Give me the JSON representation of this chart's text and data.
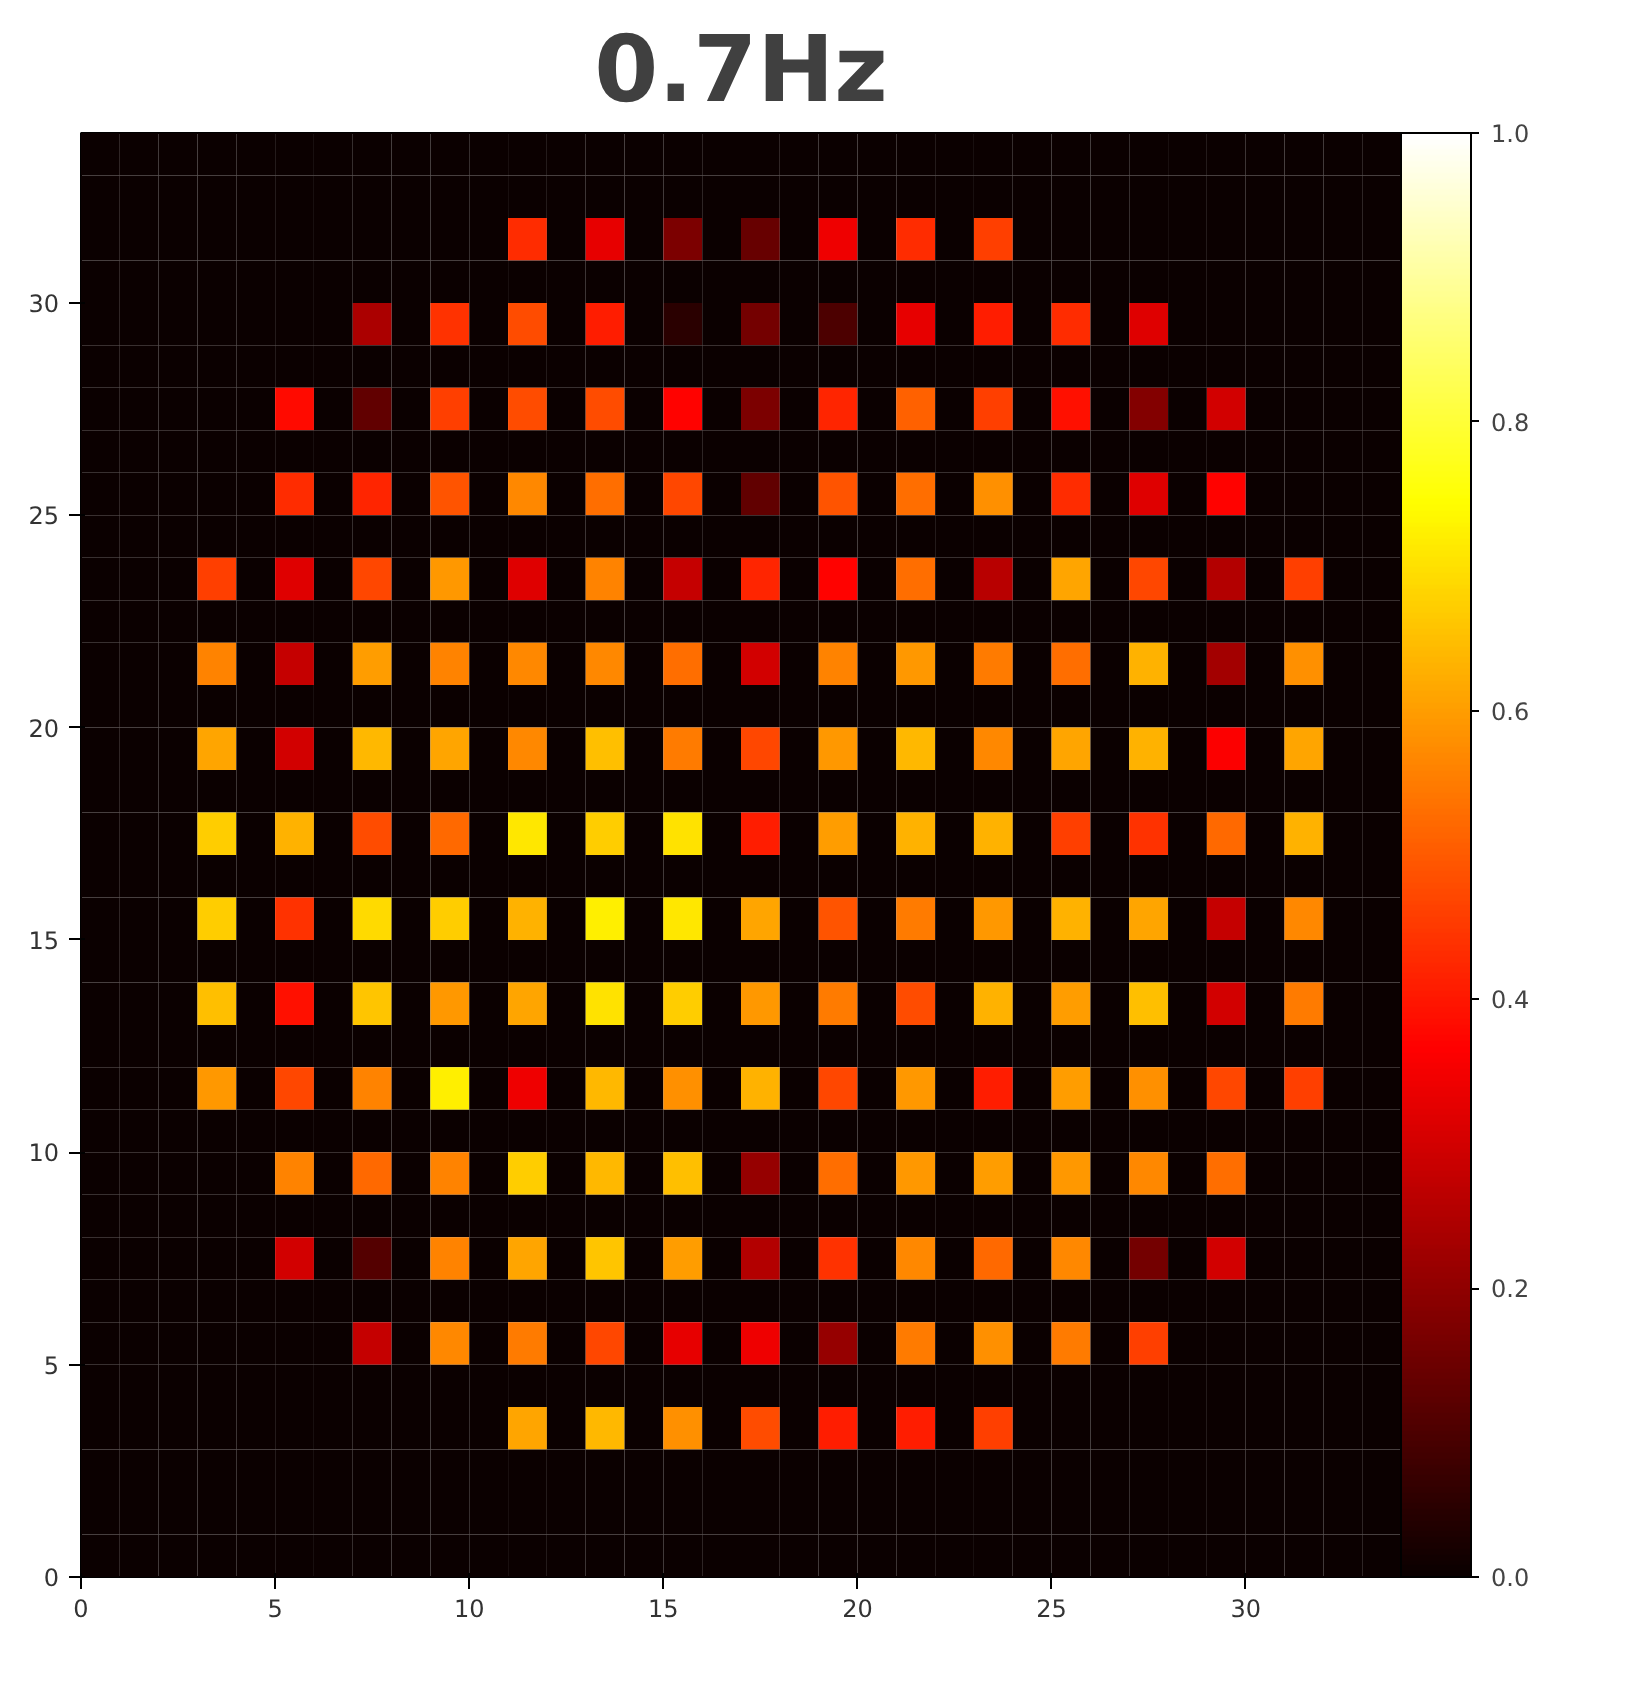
{
  "chart_data": {
    "type": "heatmap",
    "title": "0.7Hz",
    "xlim": [
      0,
      34
    ],
    "ylim": [
      0,
      34
    ],
    "xticks": [
      0,
      5,
      10,
      15,
      20,
      25,
      30
    ],
    "yticks": [
      0,
      5,
      10,
      15,
      20,
      25,
      30
    ],
    "clim": [
      0,
      1
    ],
    "cticks": [
      {
        "value": 0,
        "label": "0.0"
      },
      0.2,
      0.4,
      0.6,
      0.8,
      {
        "value": 1,
        "label": "1.0"
      }
    ],
    "grid": false,
    "cells": [
      [
        0,
        0,
        0,
        0,
        0,
        0,
        0,
        0,
        0,
        0,
        0,
        0,
        0,
        0,
        0,
        0,
        0,
        0,
        0,
        0,
        0,
        0,
        0,
        0,
        0,
        0,
        0,
        0,
        0,
        0,
        0,
        0,
        0,
        0
      ],
      [
        0,
        0,
        0,
        0,
        0,
        0,
        0,
        0,
        0,
        0,
        0,
        0,
        0,
        0,
        0,
        0,
        0,
        0,
        0,
        0,
        0,
        0,
        0,
        0,
        0,
        0,
        0,
        0,
        0,
        0,
        0,
        0,
        0,
        0
      ],
      [
        0,
        0,
        0,
        0,
        0,
        0,
        0,
        0,
        0,
        0,
        0,
        0.43,
        0,
        0.33,
        0,
        0.17,
        0,
        0.14,
        0,
        0.34,
        0,
        0.43,
        0,
        0.46,
        0,
        0,
        0,
        0,
        0,
        0,
        0,
        0,
        0,
        0
      ],
      [
        0,
        0,
        0,
        0,
        0,
        0,
        0,
        0,
        0,
        0,
        0,
        0,
        0,
        0,
        0,
        0,
        0,
        0,
        0,
        0,
        0,
        0,
        0,
        0,
        0,
        0,
        0,
        0,
        0,
        0,
        0,
        0,
        0,
        0
      ],
      [
        0,
        0,
        0,
        0,
        0,
        0,
        0,
        0.24,
        0,
        0.44,
        0,
        0.48,
        0,
        0.41,
        0,
        0.05,
        0,
        0.16,
        0,
        0.1,
        0,
        0.33,
        0,
        0.41,
        0,
        0.43,
        0,
        0.32,
        0,
        0,
        0,
        0,
        0,
        0
      ],
      [
        0,
        0,
        0,
        0,
        0,
        0,
        0,
        0,
        0,
        0,
        0,
        0,
        0,
        0,
        0,
        0,
        0,
        0,
        0,
        0,
        0,
        0,
        0,
        0,
        0,
        0,
        0,
        0,
        0,
        0,
        0,
        0,
        0,
        0
      ],
      [
        0,
        0,
        0,
        0,
        0,
        0.38,
        0,
        0.13,
        0,
        0.46,
        0,
        0.48,
        0,
        0.48,
        0,
        0.37,
        0,
        0.17,
        0,
        0.42,
        0,
        0.51,
        0,
        0.46,
        0,
        0.39,
        0,
        0.18,
        0,
        0.3,
        0,
        0,
        0,
        0
      ],
      [
        0,
        0,
        0,
        0,
        0,
        0,
        0,
        0,
        0,
        0,
        0,
        0,
        0,
        0,
        0,
        0,
        0,
        0,
        0,
        0,
        0,
        0,
        0,
        0,
        0,
        0,
        0,
        0,
        0,
        0,
        0,
        0,
        0,
        0
      ],
      [
        0,
        0,
        0,
        0,
        0,
        0.43,
        0,
        0.42,
        0,
        0.49,
        0,
        0.57,
        0,
        0.53,
        0,
        0.47,
        0,
        0.13,
        0,
        0.49,
        0,
        0.53,
        0,
        0.58,
        0,
        0.43,
        0,
        0.32,
        0,
        0.37,
        0,
        0,
        0,
        0
      ],
      [
        0,
        0,
        0,
        0,
        0,
        0,
        0,
        0,
        0,
        0,
        0,
        0,
        0,
        0,
        0,
        0,
        0,
        0,
        0,
        0,
        0,
        0,
        0,
        0,
        0,
        0,
        0,
        0,
        0,
        0,
        0,
        0,
        0,
        0
      ],
      [
        0,
        0,
        0,
        0.46,
        0,
        0.32,
        0,
        0.47,
        0,
        0.59,
        0,
        0.32,
        0,
        0.56,
        0,
        0.28,
        0,
        0.42,
        0,
        0.37,
        0,
        0.53,
        0,
        0.26,
        0,
        0.61,
        0,
        0.47,
        0,
        0.25,
        0,
        0.46,
        0,
        0
      ],
      [
        0,
        0,
        0,
        0,
        0,
        0,
        0,
        0,
        0,
        0,
        0,
        0,
        0,
        0,
        0,
        0,
        0,
        0,
        0,
        0,
        0,
        0,
        0,
        0,
        0,
        0,
        0,
        0,
        0,
        0,
        0,
        0,
        0,
        0
      ],
      [
        0,
        0,
        0,
        0.56,
        0,
        0.28,
        0,
        0.6,
        0,
        0.56,
        0,
        0.57,
        0,
        0.57,
        0,
        0.53,
        0,
        0.3,
        0,
        0.56,
        0,
        0.59,
        0,
        0.55,
        0,
        0.53,
        0,
        0.63,
        0,
        0.23,
        0,
        0.58,
        0,
        0
      ],
      [
        0,
        0,
        0,
        0,
        0,
        0,
        0,
        0,
        0,
        0,
        0,
        0,
        0,
        0,
        0,
        0,
        0,
        0,
        0,
        0,
        0,
        0,
        0,
        0,
        0,
        0,
        0,
        0,
        0,
        0,
        0,
        0,
        0,
        0
      ],
      [
        0,
        0,
        0,
        0.61,
        0,
        0.3,
        0,
        0.64,
        0,
        0.61,
        0,
        0.57,
        0,
        0.65,
        0,
        0.55,
        0,
        0.47,
        0,
        0.59,
        0,
        0.64,
        0,
        0.57,
        0,
        0.61,
        0,
        0.63,
        0,
        0.36,
        0,
        0.61,
        0,
        0
      ],
      [
        0,
        0,
        0,
        0,
        0,
        0,
        0,
        0,
        0,
        0,
        0,
        0,
        0,
        0,
        0,
        0,
        0,
        0,
        0,
        0,
        0,
        0,
        0,
        0,
        0,
        0,
        0,
        0,
        0,
        0,
        0,
        0,
        0,
        0
      ],
      [
        0,
        0,
        0,
        0.67,
        0,
        0.63,
        0,
        0.48,
        0,
        0.52,
        0,
        0.71,
        0,
        0.67,
        0,
        0.7,
        0,
        0.41,
        0,
        0.6,
        0,
        0.63,
        0,
        0.63,
        0,
        0.46,
        0,
        0.44,
        0,
        0.52,
        0,
        0.63,
        0,
        0
      ],
      [
        0,
        0,
        0,
        0,
        0,
        0,
        0,
        0,
        0,
        0,
        0,
        0,
        0,
        0,
        0,
        0,
        0,
        0,
        0,
        0,
        0,
        0,
        0,
        0,
        0,
        0,
        0,
        0,
        0,
        0,
        0,
        0,
        0,
        0
      ],
      [
        0,
        0,
        0,
        0.67,
        0,
        0.44,
        0,
        0.69,
        0,
        0.67,
        0,
        0.63,
        0,
        0.72,
        0,
        0.71,
        0,
        0.61,
        0,
        0.49,
        0,
        0.55,
        0,
        0.59,
        0,
        0.63,
        0,
        0.61,
        0,
        0.28,
        0,
        0.57,
        0,
        0
      ],
      [
        0,
        0,
        0,
        0,
        0,
        0,
        0,
        0,
        0,
        0,
        0,
        0,
        0,
        0,
        0,
        0,
        0,
        0,
        0,
        0,
        0,
        0,
        0,
        0,
        0,
        0,
        0,
        0,
        0,
        0,
        0,
        0,
        0,
        0
      ],
      [
        0,
        0,
        0,
        0.65,
        0,
        0.39,
        0,
        0.66,
        0,
        0.59,
        0,
        0.61,
        0,
        0.7,
        0,
        0.67,
        0,
        0.59,
        0,
        0.55,
        0,
        0.48,
        0,
        0.63,
        0,
        0.6,
        0,
        0.65,
        0,
        0.3,
        0,
        0.55,
        0,
        0
      ],
      [
        0,
        0,
        0,
        0,
        0,
        0,
        0,
        0,
        0,
        0,
        0,
        0,
        0,
        0,
        0,
        0,
        0,
        0,
        0,
        0,
        0,
        0,
        0,
        0,
        0,
        0,
        0,
        0,
        0,
        0,
        0,
        0,
        0,
        0
      ],
      [
        0,
        0,
        0,
        0.59,
        0,
        0.47,
        0,
        0.56,
        0,
        0.72,
        0,
        0.34,
        0,
        0.64,
        0,
        0.58,
        0,
        0.63,
        0,
        0.47,
        0,
        0.59,
        0,
        0.41,
        0,
        0.6,
        0,
        0.58,
        0,
        0.47,
        0,
        0.46,
        0,
        0
      ],
      [
        0,
        0,
        0,
        0,
        0,
        0,
        0,
        0,
        0,
        0,
        0,
        0,
        0,
        0,
        0,
        0,
        0,
        0,
        0,
        0,
        0,
        0,
        0,
        0,
        0,
        0,
        0,
        0,
        0,
        0,
        0,
        0,
        0,
        0
      ],
      [
        0,
        0,
        0,
        0,
        0,
        0.56,
        0,
        0.52,
        0,
        0.56,
        0,
        0.67,
        0,
        0.64,
        0,
        0.65,
        0,
        0.21,
        0,
        0.53,
        0,
        0.59,
        0,
        0.6,
        0,
        0.59,
        0,
        0.57,
        0,
        0.53,
        0,
        0,
        0,
        0
      ],
      [
        0,
        0,
        0,
        0,
        0,
        0,
        0,
        0,
        0,
        0,
        0,
        0,
        0,
        0,
        0,
        0,
        0,
        0,
        0,
        0,
        0,
        0,
        0,
        0,
        0,
        0,
        0,
        0,
        0,
        0,
        0,
        0,
        0,
        0
      ],
      [
        0,
        0,
        0,
        0,
        0,
        0.3,
        0,
        0.11,
        0,
        0.56,
        0,
        0.61,
        0,
        0.66,
        0,
        0.6,
        0,
        0.25,
        0,
        0.44,
        0,
        0.57,
        0,
        0.52,
        0,
        0.57,
        0,
        0.16,
        0,
        0.3,
        0,
        0,
        0,
        0
      ],
      [
        0,
        0,
        0,
        0,
        0,
        0,
        0,
        0,
        0,
        0,
        0,
        0,
        0,
        0,
        0,
        0,
        0,
        0,
        0,
        0,
        0,
        0,
        0,
        0,
        0,
        0,
        0,
        0,
        0,
        0,
        0,
        0,
        0,
        0
      ],
      [
        0,
        0,
        0,
        0,
        0,
        0,
        0,
        0.28,
        0,
        0.57,
        0,
        0.55,
        0,
        0.47,
        0,
        0.33,
        0,
        0.34,
        0,
        0.21,
        0,
        0.55,
        0,
        0.58,
        0,
        0.55,
        0,
        0.46,
        0,
        0,
        0,
        0,
        0,
        0
      ],
      [
        0,
        0,
        0,
        0,
        0,
        0,
        0,
        0,
        0,
        0,
        0,
        0,
        0,
        0,
        0,
        0,
        0,
        0,
        0,
        0,
        0,
        0,
        0,
        0,
        0,
        0,
        0,
        0,
        0,
        0,
        0,
        0,
        0,
        0
      ],
      [
        0,
        0,
        0,
        0,
        0,
        0,
        0,
        0,
        0,
        0,
        0,
        0.61,
        0,
        0.64,
        0,
        0.58,
        0,
        0.48,
        0,
        0.41,
        0,
        0.41,
        0,
        0.46,
        0,
        0,
        0,
        0,
        0,
        0,
        0,
        0,
        0,
        0
      ],
      [
        0,
        0,
        0,
        0,
        0,
        0,
        0,
        0,
        0,
        0,
        0,
        0,
        0,
        0,
        0,
        0,
        0,
        0,
        0,
        0,
        0,
        0,
        0,
        0,
        0,
        0,
        0,
        0,
        0,
        0,
        0,
        0,
        0,
        0
      ],
      [
        0,
        0,
        0,
        0,
        0,
        0,
        0,
        0,
        0,
        0,
        0,
        0,
        0,
        0,
        0,
        0,
        0,
        0,
        0,
        0,
        0,
        0,
        0,
        0,
        0,
        0,
        0,
        0,
        0,
        0,
        0,
        0,
        0,
        0
      ],
      [
        0,
        0,
        0,
        0,
        0,
        0,
        0,
        0,
        0,
        0,
        0,
        0,
        0,
        0,
        0,
        0,
        0,
        0,
        0,
        0,
        0,
        0,
        0,
        0,
        0,
        0,
        0,
        0,
        0,
        0,
        0,
        0,
        0,
        0
      ]
    ]
  }
}
